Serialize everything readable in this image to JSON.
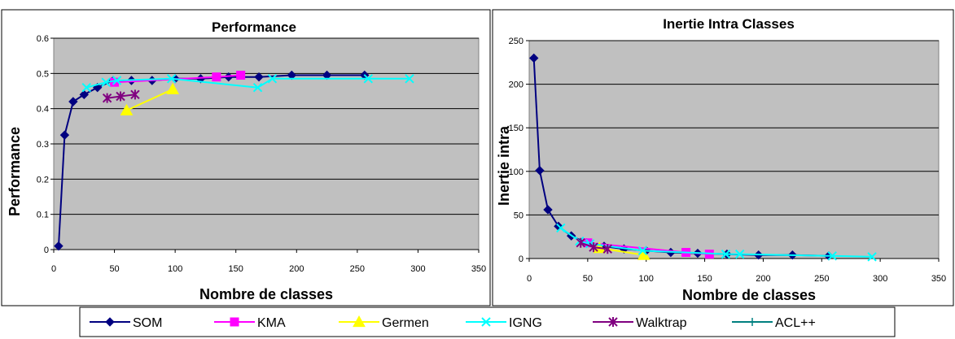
{
  "chart_data": [
    {
      "type": "line",
      "title": "Performance",
      "xlabel": "Nombre de classes",
      "ylabel": "Performance",
      "xlim": [
        0,
        350
      ],
      "ylim": [
        0,
        0.6
      ],
      "xticks": [
        "0",
        "50",
        "100",
        "150",
        "200",
        "250",
        "300",
        "350"
      ],
      "yticks": [
        "0",
        "0.1",
        "0.2",
        "0.3",
        "0.4",
        "0.5",
        "0.6"
      ],
      "grid": "horizontal",
      "plot_background": "#C0C0C0",
      "series": [
        {
          "name": "SOM",
          "color": "#000080",
          "marker": "diamond",
          "points": [
            [
              4,
              0.01
            ],
            [
              9,
              0.325
            ],
            [
              16,
              0.42
            ],
            [
              25,
              0.44
            ],
            [
              36,
              0.46
            ],
            [
              49,
              0.48
            ],
            [
              64,
              0.48
            ],
            [
              81,
              0.48
            ],
            [
              100,
              0.485
            ],
            [
              121,
              0.485
            ],
            [
              144,
              0.49
            ],
            [
              169,
              0.49
            ],
            [
              196,
              0.495
            ],
            [
              225,
              0.495
            ],
            [
              256,
              0.495
            ]
          ]
        },
        {
          "name": "KMA",
          "color": "#FF00FF",
          "marker": "square",
          "points": [
            [
              50,
              0.475
            ],
            [
              134,
              0.49
            ],
            [
              154,
              0.495
            ]
          ]
        },
        {
          "name": "Germen",
          "color": "#FFFF00",
          "marker": "triangle",
          "points": [
            [
              60,
              0.395
            ],
            [
              98,
              0.455
            ]
          ]
        },
        {
          "name": "IGNG",
          "color": "#00FFFF",
          "marker": "x",
          "points": [
            [
              27,
              0.46
            ],
            [
              43,
              0.475
            ],
            [
              52,
              0.48
            ],
            [
              97,
              0.485
            ],
            [
              168,
              0.46
            ],
            [
              180,
              0.485
            ],
            [
              259,
              0.485
            ],
            [
              293,
              0.485
            ]
          ]
        },
        {
          "name": "Walktrap",
          "color": "#800080",
          "marker": "star",
          "points": [
            [
              44,
              0.43
            ],
            [
              55,
              0.435
            ],
            [
              67,
              0.44
            ]
          ]
        },
        {
          "name": "ACL++",
          "color": "#008080",
          "marker": "plus",
          "points": []
        }
      ]
    },
    {
      "type": "line",
      "title": "Inertie Intra Classes",
      "xlabel": "Nombre de classes",
      "ylabel": "Inertie intra",
      "xlim": [
        0,
        350
      ],
      "ylim": [
        0,
        250
      ],
      "xticks": [
        "0",
        "50",
        "100",
        "150",
        "200",
        "250",
        "300",
        "350"
      ],
      "yticks": [
        "0",
        "50",
        "100",
        "150",
        "200",
        "250"
      ],
      "grid": "horizontal",
      "plot_background": "#C0C0C0",
      "series": [
        {
          "name": "SOM",
          "color": "#000080",
          "marker": "diamond",
          "points": [
            [
              4,
              230
            ],
            [
              9,
              101
            ],
            [
              16,
              56
            ],
            [
              25,
              37
            ],
            [
              36,
              26
            ],
            [
              49,
              18
            ],
            [
              64,
              14
            ],
            [
              81,
              11
            ],
            [
              100,
              9
            ],
            [
              121,
              7
            ],
            [
              144,
              6
            ],
            [
              169,
              5
            ],
            [
              196,
              4
            ],
            [
              225,
              4
            ],
            [
              256,
              3
            ]
          ]
        },
        {
          "name": "KMA",
          "color": "#FF00FF",
          "marker": "square",
          "points": [
            [
              50,
              18
            ],
            [
              134,
              7
            ],
            [
              154,
              5
            ]
          ]
        },
        {
          "name": "Germen",
          "color": "#FFFF00",
          "marker": "triangle",
          "points": [
            [
              60,
              12
            ],
            [
              98,
              4
            ]
          ]
        },
        {
          "name": "IGNG",
          "color": "#00FFFF",
          "marker": "x",
          "points": [
            [
              27,
              35
            ],
            [
              43,
              20
            ],
            [
              52,
              17
            ],
            [
              97,
              9
            ],
            [
              168,
              5
            ],
            [
              180,
              5
            ],
            [
              259,
              3
            ],
            [
              293,
              2
            ]
          ]
        },
        {
          "name": "Walktrap",
          "color": "#800080",
          "marker": "star",
          "points": [
            [
              44,
              18
            ],
            [
              55,
              13
            ],
            [
              67,
              11
            ]
          ]
        },
        {
          "name": "ACL++",
          "color": "#008080",
          "marker": "plus",
          "points": []
        }
      ]
    }
  ]
}
